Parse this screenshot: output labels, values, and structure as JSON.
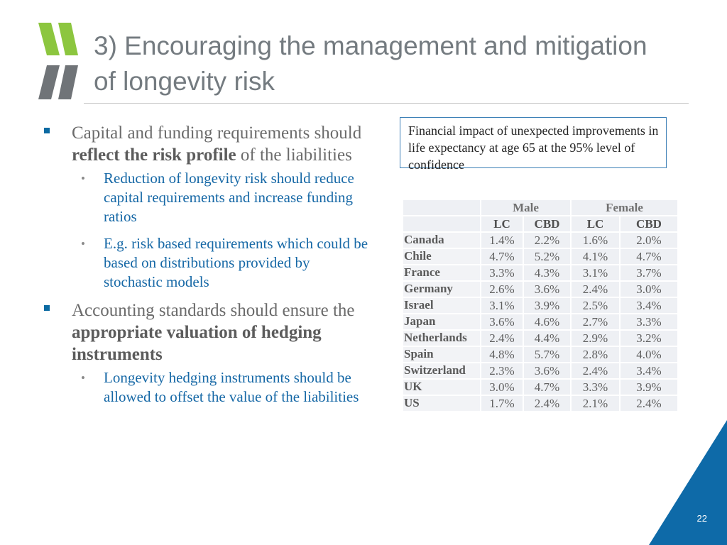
{
  "title": "3) Encouraging the management and mitigation of longevity risk",
  "bullets": {
    "b1_text_a": "Capital and funding requirements should ",
    "b1_bold": "reflect the risk profile",
    "b1_text_b": " of the liabilities",
    "b1_sub1": "Reduction of longevity risk should reduce capital requirements and increase funding ratios",
    "b1_sub2": "E.g. risk based requirements which could be based on distributions provided by stochastic models",
    "b2_text_a": "Accounting standards should ensure the ",
    "b2_bold": "appropriate valuation of hedging instruments",
    "b2_sub1": "Longevity hedging instruments should be allowed to offset the value of the liabilities",
    "sub_marker": "•"
  },
  "callout": "Financial impact of unexpected improvements in life expectancy at age 65 at the 95% level of confidence",
  "table": {
    "groups": [
      "Male",
      "Female"
    ],
    "subheaders": [
      "LC",
      "CBD",
      "LC",
      "CBD"
    ],
    "rows": [
      {
        "country": "Canada",
        "values": [
          "1.4%",
          "2.2%",
          "1.6%",
          "2.0%"
        ]
      },
      {
        "country": "Chile",
        "values": [
          "4.7%",
          "5.2%",
          "4.1%",
          "4.7%"
        ]
      },
      {
        "country": "France",
        "values": [
          "3.3%",
          "4.3%",
          "3.1%",
          "3.7%"
        ]
      },
      {
        "country": "Germany",
        "values": [
          "2.6%",
          "3.6%",
          "2.4%",
          "3.0%"
        ]
      },
      {
        "country": "Israel",
        "values": [
          "3.1%",
          "3.9%",
          "2.5%",
          "3.4%"
        ]
      },
      {
        "country": "Japan",
        "values": [
          "3.6%",
          "4.6%",
          "2.7%",
          "3.3%"
        ]
      },
      {
        "country": "Netherlands",
        "values": [
          "2.4%",
          "4.4%",
          "2.9%",
          "3.2%"
        ]
      },
      {
        "country": "Spain",
        "values": [
          "4.8%",
          "5.7%",
          "2.8%",
          "4.0%"
        ]
      },
      {
        "country": "Switzerland",
        "values": [
          "2.3%",
          "3.6%",
          "2.4%",
          "3.4%"
        ]
      },
      {
        "country": "UK",
        "values": [
          "3.0%",
          "4.7%",
          "3.3%",
          "3.9%"
        ]
      },
      {
        "country": "US",
        "values": [
          "1.7%",
          "2.4%",
          "2.1%",
          "2.4%"
        ]
      }
    ]
  },
  "page_number": "22",
  "colors": {
    "accent_blue": "#0b6aa2",
    "sub_text_blue": "#1668a6",
    "logo_green": "#8cc63f",
    "logo_gray": "#707478",
    "corner_blue": "#0e6aa8"
  }
}
